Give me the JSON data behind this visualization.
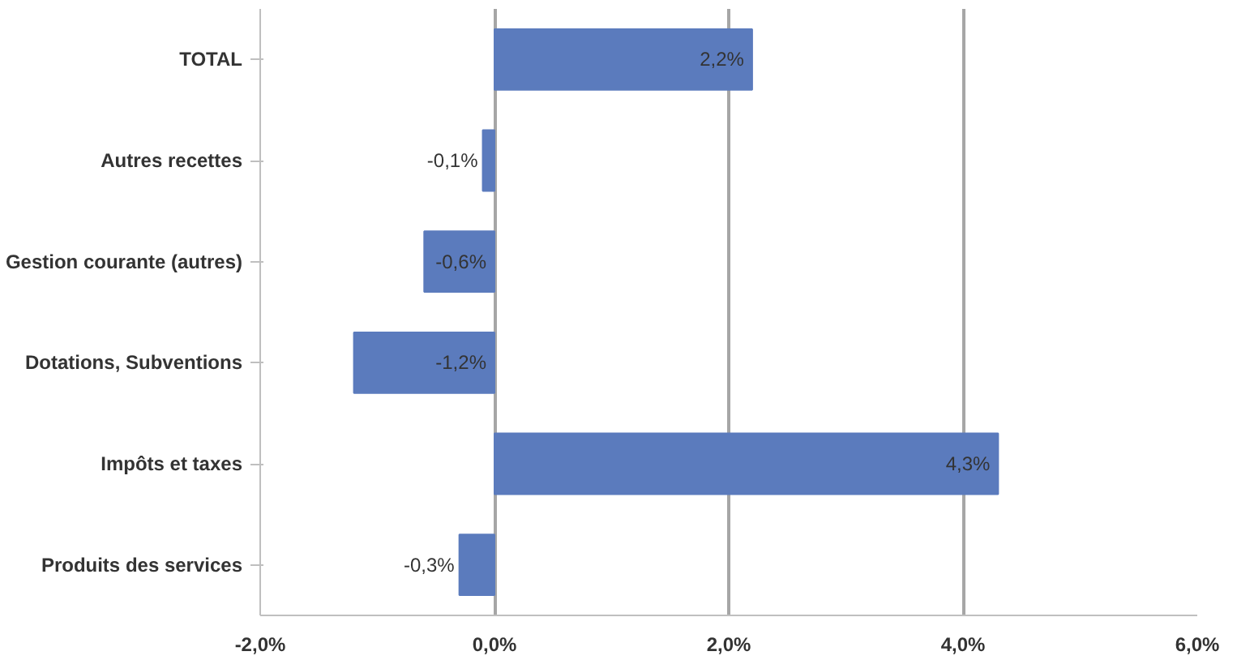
{
  "chart_data": {
    "type": "bar",
    "orientation": "horizontal",
    "categories": [
      "TOTAL",
      "Autres recettes",
      "Gestion courante (autres)",
      "Dotations, Subventions",
      "Impôts et taxes",
      "Produits des services"
    ],
    "values": [
      2.2,
      -0.1,
      -0.6,
      -1.2,
      4.3,
      -0.3
    ],
    "value_labels": [
      "2,2%",
      "-0,1%",
      "-0,6%",
      "-1,2%",
      "4,3%",
      "-0,3%"
    ],
    "color": "#5b7bbd",
    "xlim": [
      -2,
      6
    ],
    "xticks": [
      {
        "value": -2,
        "label": "-2,0%"
      },
      {
        "value": 0,
        "label": "0,0%"
      },
      {
        "value": 2,
        "label": "2,0%"
      },
      {
        "value": 4,
        "label": "4,0%"
      },
      {
        "value": 6,
        "label": "6,0%"
      }
    ],
    "grid": "x"
  }
}
